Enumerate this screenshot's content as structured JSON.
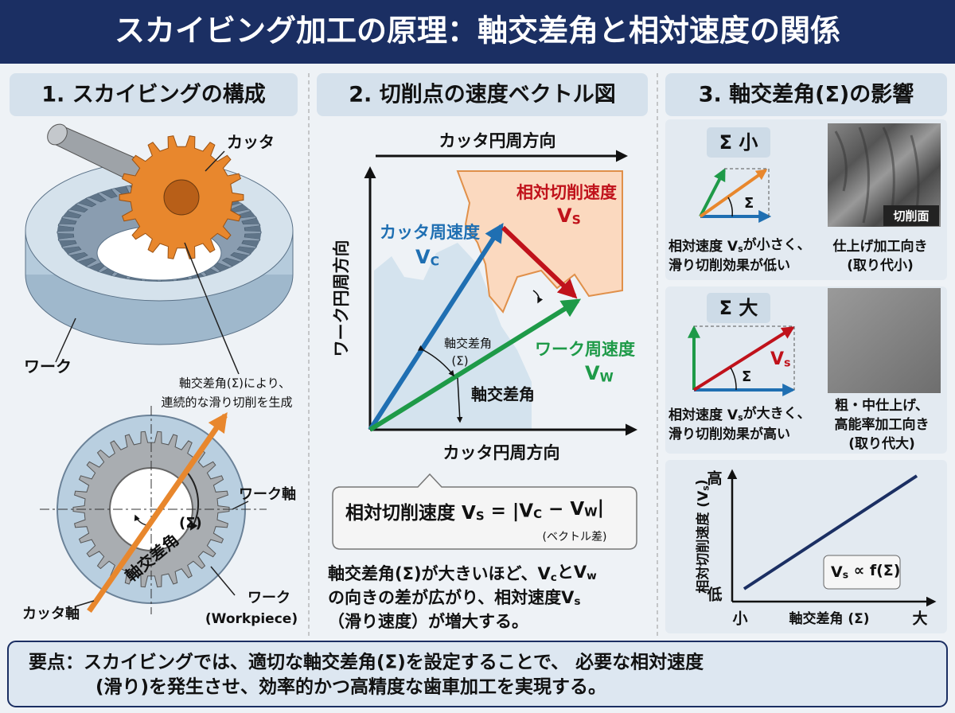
{
  "header": {
    "title": "スカイビング加工の原理：軸交差角と相対速度の関係"
  },
  "panel1": {
    "title": "1. スカイビングの構成",
    "cutter_label": "カッタ",
    "work_label": "ワーク",
    "note": [
      "軸交差角(Σ)により、",
      "連続的な滑り切削を生成"
    ],
    "work_axis": "ワーク軸",
    "cutter_axis": "カッタ軸",
    "sigma": "(Σ)",
    "angle_label": "軸交差角",
    "workpiece": [
      "ワーク",
      "(Workpiece)"
    ]
  },
  "panel2": {
    "title": "2. 切削点の速度ベクトル図",
    "top_axis": "カッタ円周方向",
    "y_axis": "ワーク円周方向",
    "x_axis": "カッタ円周方向",
    "relative": {
      "label": "相対切削速度",
      "symbol": [
        "V",
        "S"
      ]
    },
    "cutter_speed": {
      "label": "カッタ周速度",
      "symbol": [
        "V",
        "C"
      ]
    },
    "work_speed": {
      "label": "ワーク周速度",
      "symbol": [
        "V",
        "W"
      ]
    },
    "angle_small": [
      "軸交差角",
      "(Σ)"
    ],
    "angle": "軸交差角",
    "formula": [
      "相対切削速度 V",
      "S",
      " = |V",
      "C",
      " − V",
      "W",
      "|"
    ],
    "formula_note": "(ベクトル差)",
    "explanation": [
      [
        "軸交差角(Σ)が大きいほど、V",
        "c",
        "とV",
        "w"
      ],
      [
        "の向きの差が広がり、相対速度V",
        "s"
      ],
      [
        "（滑り速度）が増大する。"
      ]
    ]
  },
  "panel3": {
    "title": "3. 軸交差角(Σ)の影響",
    "small": {
      "label": "Σ 小",
      "sigma": "Σ",
      "image_label": "切削面",
      "text": [
        [
          "相対速度 V",
          "s",
          "が小さく、"
        ],
        [
          "滑り切削効果が低い"
        ]
      ],
      "use": [
        "仕上げ加工向き",
        "(取り代小)"
      ]
    },
    "large": {
      "label": "Σ 大",
      "sigma": "Σ",
      "symbol": [
        "V",
        "s"
      ],
      "text": [
        [
          "相対速度 V",
          "s",
          "が大きく、"
        ],
        [
          "滑り切削効果が高い"
        ]
      ],
      "use": [
        "粗・中仕上げ、",
        "高能率加工向き",
        "(取り代大)"
      ]
    },
    "graph": {
      "y_label": [
        "相対切削速度 (V",
        "s",
        ")"
      ],
      "y_high": "高",
      "y_low": "低",
      "x_low": "小",
      "x_label": "軸交差角 (Σ)",
      "x_high": "大",
      "relation": [
        "V",
        "s",
        " ∝ f(Σ)"
      ]
    }
  },
  "footer": {
    "lines": [
      "要点：スカイビングでは、適切な軸交差角(Σ)を設定することで、 必要な相対速度",
      "(滑り)を発生させ、効率的かつ高精度な歯車加工を実現する。"
    ]
  }
}
